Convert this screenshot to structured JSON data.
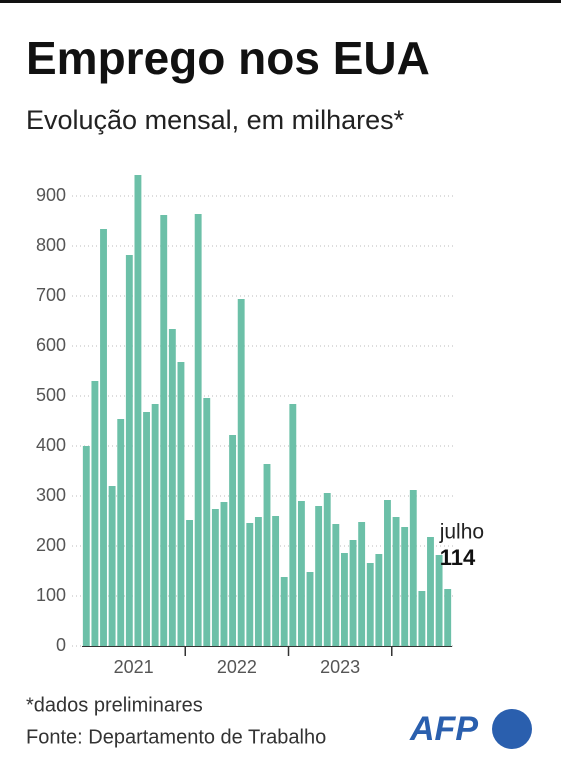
{
  "chart_data": {
    "type": "bar",
    "title": "Emprego nos EUA",
    "subtitle": "Evolução mensal, em milhares*",
    "annotation": "julho",
    "note": "*dados preliminares",
    "source": "Fonte: Departamento de Trabalho",
    "logo": "AFP",
    "color": "#6cc0a8",
    "year_labels": [
      "2021",
      "2022",
      "2023"
    ],
    "values": [
      400,
      530,
      834,
      320,
      454,
      782,
      942,
      468,
      484,
      862,
      634,
      568,
      252,
      864,
      496,
      274,
      288,
      422,
      694,
      246,
      258,
      364,
      260,
      138,
      484,
      290,
      148,
      280,
      306,
      244,
      186,
      212,
      248,
      166,
      184,
      292,
      258,
      238,
      312,
      110,
      218,
      182,
      114
    ],
    "ylim": [
      0,
      900
    ],
    "yticks": [
      0,
      100,
      200,
      300,
      400,
      500,
      600,
      700,
      800,
      900
    ],
    "grid": true
  }
}
